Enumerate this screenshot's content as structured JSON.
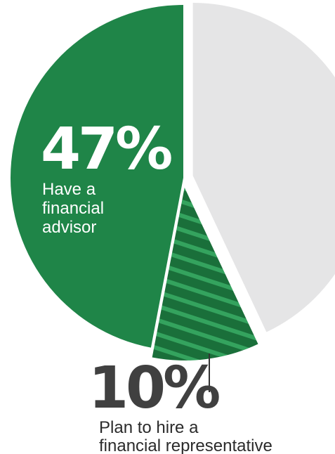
{
  "chart_data": {
    "type": "pie",
    "slices": [
      {
        "value": 47,
        "percent_label": "47%",
        "label_lines": [
          "Have a",
          "financial",
          "advisor"
        ],
        "color": "#1f8548",
        "pattern": "solid",
        "exploded": false
      },
      {
        "value": 10,
        "percent_label": "10%",
        "label_lines": [
          "Plan to hire a",
          "financial representative"
        ],
        "color": "#1a6f3a",
        "stripe_color": "#34a35e",
        "pattern": "diagonal-stripes",
        "exploded": true
      },
      {
        "value": 43,
        "percent_label": "",
        "label_lines": [],
        "color": "#e5e5e6",
        "pattern": "solid",
        "exploded": true
      }
    ],
    "label_colors": {
      "inside": "#ffffff",
      "outside_pct": "#404040",
      "outside_text": "#2b2b2b",
      "leader_line": "#333333"
    }
  }
}
